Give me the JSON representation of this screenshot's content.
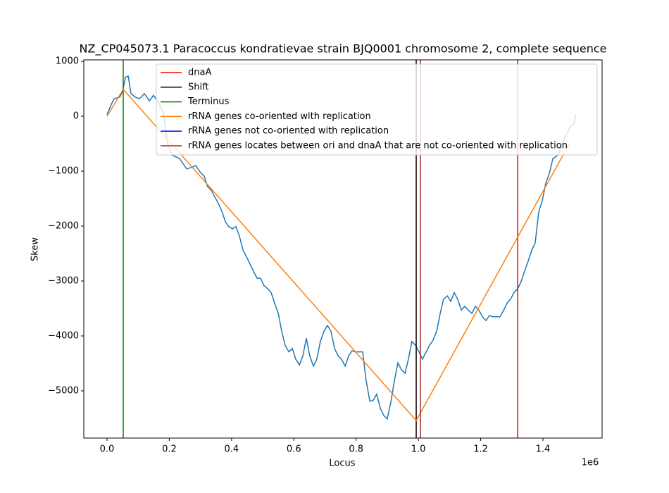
{
  "chart_data": {
    "type": "line",
    "title": "NZ_CP045073.1 Paracoccus kondratievae strain BJQ0001 chromosome 2, complete sequence",
    "xlabel": "Locus",
    "ylabel": "Skew",
    "x_offset_label": "1e6",
    "xlim": [
      -74600,
      1590000
    ],
    "ylim": [
      -5859,
      1026
    ],
    "xticks": [
      {
        "value": 0,
        "label": "0.0"
      },
      {
        "value": 200000,
        "label": "0.2"
      },
      {
        "value": 400000,
        "label": "0.4"
      },
      {
        "value": 600000,
        "label": "0.6"
      },
      {
        "value": 800000,
        "label": "0.8"
      },
      {
        "value": 1000000,
        "label": "1.0"
      },
      {
        "value": 1200000,
        "label": "1.2"
      },
      {
        "value": 1400000,
        "label": "1.4"
      }
    ],
    "yticks": [
      {
        "value": -5000,
        "label": "−5000"
      },
      {
        "value": -4000,
        "label": "−4000"
      },
      {
        "value": -3000,
        "label": "−3000"
      },
      {
        "value": -2000,
        "label": "−2000"
      },
      {
        "value": -1000,
        "label": "−1000"
      },
      0,
      1000
    ],
    "legend": "upper right",
    "skew": {
      "color": "#1f77b4",
      "x": [
        0,
        14000,
        23000,
        41000,
        50000,
        59000,
        68000,
        77000,
        90000,
        104000,
        120000,
        136000,
        149000,
        165000,
        181000,
        195000,
        210000,
        233000,
        256000,
        267000,
        285000,
        301000,
        312000,
        323000,
        335000,
        346000,
        357000,
        369000,
        380000,
        391000,
        403000,
        414000,
        425000,
        437000,
        448000,
        459000,
        470000,
        482000,
        493000,
        504000,
        516000,
        527000,
        538000,
        550000,
        561000,
        572000,
        584000,
        595000,
        606000,
        618000,
        629000,
        640000,
        651000,
        663000,
        674000,
        685000,
        697000,
        708000,
        719000,
        731000,
        742000,
        753000,
        765000,
        776000,
        787000,
        798000,
        810000,
        821000,
        832000,
        844000,
        855000,
        866000,
        878000,
        889000,
        900000,
        912000,
        923000,
        934000,
        946000,
        957000,
        968000,
        979000,
        991000,
        1002000,
        1013000,
        1025000,
        1036000,
        1047000,
        1059000,
        1070000,
        1081000,
        1093000,
        1104000,
        1115000,
        1126000,
        1138000,
        1149000,
        1160000,
        1172000,
        1183000,
        1194000,
        1206000,
        1217000,
        1228000,
        1240000,
        1251000,
        1262000,
        1274000,
        1285000,
        1296000,
        1307000,
        1319000,
        1330000,
        1341000,
        1353000,
        1364000,
        1375000,
        1387000,
        1398000,
        1409000,
        1421000,
        1432000,
        1443000,
        1454000,
        1466000,
        1477000,
        1488000,
        1499000,
        1506000
      ],
      "values": [
        30,
        220,
        320,
        350,
        450,
        710,
        730,
        410,
        350,
        320,
        410,
        280,
        380,
        260,
        60,
        -510,
        -710,
        -770,
        -960,
        -940,
        -900,
        -1030,
        -1090,
        -1280,
        -1350,
        -1470,
        -1580,
        -1730,
        -1920,
        -2010,
        -2050,
        -2010,
        -2180,
        -2440,
        -2560,
        -2690,
        -2820,
        -2950,
        -2950,
        -3080,
        -3140,
        -3210,
        -3400,
        -3590,
        -3910,
        -4170,
        -4290,
        -4230,
        -4420,
        -4530,
        -4360,
        -4040,
        -4360,
        -4550,
        -4420,
        -4100,
        -3910,
        -3810,
        -3910,
        -4230,
        -4360,
        -4420,
        -4550,
        -4360,
        -4270,
        -4290,
        -4290,
        -4290,
        -4810,
        -5190,
        -5170,
        -5060,
        -5320,
        -5450,
        -5510,
        -5190,
        -4810,
        -4490,
        -4620,
        -4680,
        -4420,
        -4100,
        -4170,
        -4290,
        -4420,
        -4290,
        -4170,
        -4080,
        -3910,
        -3590,
        -3330,
        -3270,
        -3370,
        -3210,
        -3330,
        -3530,
        -3460,
        -3530,
        -3590,
        -3460,
        -3530,
        -3650,
        -3720,
        -3630,
        -3650,
        -3650,
        -3650,
        -3530,
        -3400,
        -3330,
        -3210,
        -3140,
        -3010,
        -2820,
        -2630,
        -2440,
        -2310,
        -1730,
        -1540,
        -1220,
        -1030,
        -770,
        -730,
        -640,
        -450,
        -320,
        -190,
        -140,
        40
      ]
    },
    "series": [
      {
        "name": "dnaA",
        "color": "#ff0000",
        "vlines": [
          1319000
        ]
      },
      {
        "name": "Shift",
        "color": "#000000",
        "vlines": [
          993000
        ]
      },
      {
        "name": "Terminus",
        "color": "#008000",
        "vlines": [
          52000
        ]
      },
      {
        "name": "rRNA genes co-oriented with replication",
        "color": "#ff7f0e",
        "x": [
          0,
          52000,
          993000,
          1484000
        ],
        "values": [
          0,
          490,
          -5540,
          -510
        ]
      },
      {
        "name": "rRNA genes not co-oriented with replication",
        "color": "#0000ff",
        "vlines": []
      },
      {
        "name": "rRNA genes locates between ori and dnaA that are not co-oriented with replication",
        "color": "#a52a2a",
        "vlines": [
          1006600
        ]
      }
    ]
  }
}
